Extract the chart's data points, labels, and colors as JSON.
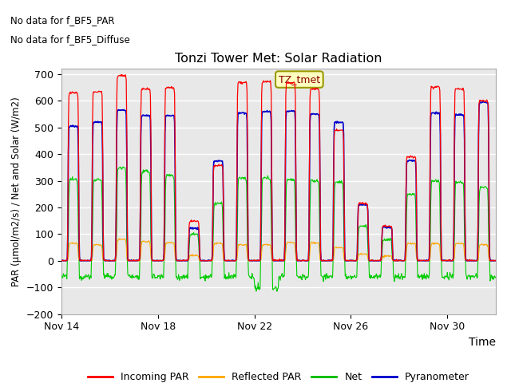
{
  "title": "Tonzi Tower Met: Solar Radiation",
  "xlabel": "Time",
  "ylabel": "PAR (μmol/m2/s) / Net and Solar (W/m2)",
  "ylim": [
    -200,
    720
  ],
  "yticks": [
    -200,
    -100,
    0,
    100,
    200,
    300,
    400,
    500,
    600,
    700
  ],
  "xtick_labels": [
    "Nov 14",
    "Nov 18",
    "Nov 22",
    "Nov 26",
    "Nov 30"
  ],
  "annotation_text1": "No data for f_BF5_PAR",
  "annotation_text2": "No data for f_BF5_Diffuse",
  "label_box_text": "TZ_tmet",
  "legend_entries": [
    "Incoming PAR",
    "Reflected PAR",
    "Net",
    "Pyranometer"
  ],
  "legend_colors": [
    "#ff0000",
    "#ffa500",
    "#00bb00",
    "#0000cc"
  ],
  "line_colors": {
    "incoming_par": "#ff0000",
    "reflected_par": "#ffa500",
    "net": "#00cc00",
    "pyranometer": "#0000cc"
  },
  "fig_bg": "#ffffff",
  "plot_bg_color": "#e8e8e8",
  "grid_color": "#ffffff"
}
